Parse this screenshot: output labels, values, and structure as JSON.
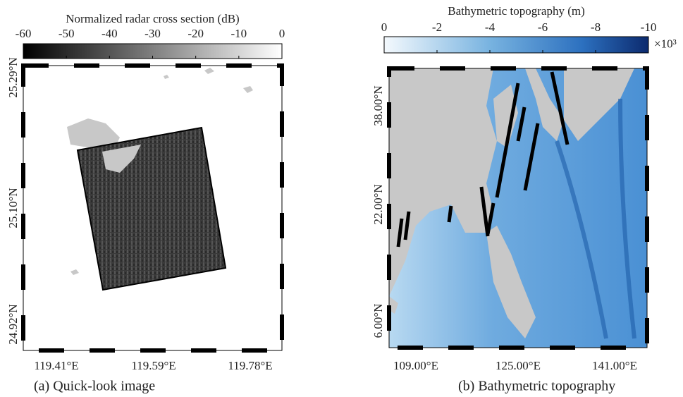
{
  "panels": [
    {
      "colorbar": {
        "title": "Normalized radar cross section (dB)",
        "lim": [
          -60,
          0
        ],
        "ticks": [
          -60,
          -50,
          -40,
          -30,
          -20,
          -10,
          0
        ]
      },
      "yticks": [
        "25.29°N",
        "25.10°N",
        "24.92°N"
      ],
      "xticks": [
        "119.41°E",
        "119.59°E",
        "119.78°E"
      ],
      "caption": "(a) Quick-look image"
    },
    {
      "colorbar": {
        "title": "Bathymetric topography (m)",
        "lim": [
          0,
          -10
        ],
        "ticks": [
          0,
          -2,
          -4,
          -6,
          -8,
          -10
        ],
        "multiplier": "×10³"
      },
      "yticks": [
        "38.00°N",
        "22.00°N",
        "6.00°N"
      ],
      "xticks": [
        "109.00°E",
        "125.00°E",
        "141.00°E"
      ],
      "caption": "(b) Bathymetric topography"
    }
  ]
}
